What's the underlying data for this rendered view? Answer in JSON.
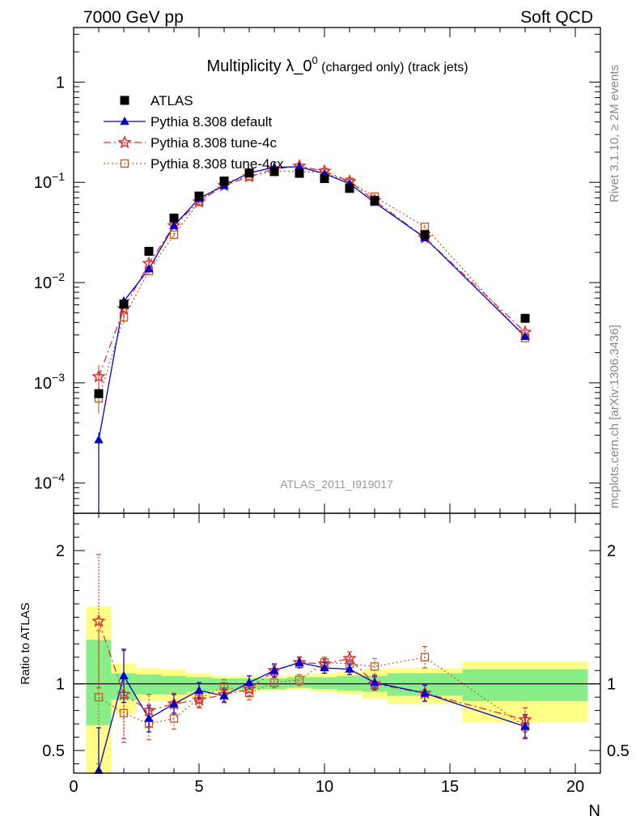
{
  "header": {
    "left": "7000 GeV pp",
    "right": "Soft QCD"
  },
  "side_text": {
    "rivet": "Rivet 3.1.10, ≥ 2M events",
    "mcplots": "mcplots.cern.ch [arXiv:1306.3436]"
  },
  "chart_data": {
    "type": "scatter",
    "title_main": "Multiplicity λ_0",
    "title_sup": "0",
    "title_suffix": " (charged only) (track jets)",
    "analysis_label": "ATLAS_2011_I919017",
    "xlabel": "N",
    "ylabel_ratio": "Ratio to ATLAS",
    "xlim": [
      0,
      21
    ],
    "ylim_main": [
      5e-05,
      3.5
    ],
    "ylim_ratio": [
      0.33,
      2.28
    ],
    "y_scale_main": "log",
    "x_ticks": [
      "0",
      "5",
      "10",
      "15",
      "20"
    ],
    "ratio_ticks": [
      "0.5",
      "1",
      "2"
    ],
    "legend_position": "top-left",
    "legend": [
      {
        "label": "ATLAS"
      },
      {
        "label": "Pythia 8.308 default"
      },
      {
        "label": "Pythia 8.308 tune-4c"
      },
      {
        "label": "Pythia 8.308 tune-4cx"
      }
    ],
    "colors": {
      "atlas": "#000000",
      "default": "#0000cc",
      "tune4c": "#dd3333",
      "tune4cx": "#c0622c",
      "band_outer": "#ffff88",
      "band_inner": "#88ee88"
    },
    "x": [
      1,
      2,
      3,
      4,
      5,
      6,
      7,
      8,
      9,
      10,
      11,
      12,
      14,
      18
    ],
    "bin_edges": [
      0.5,
      1.5,
      2.5,
      3.5,
      4.5,
      5.5,
      6.5,
      7.5,
      8.5,
      9.5,
      10.5,
      11.5,
      12.5,
      15.5,
      20.5
    ],
    "atlas": [
      0.00078,
      0.0061,
      0.0205,
      0.044,
      0.073,
      0.103,
      0.124,
      0.128,
      0.123,
      0.109,
      0.087,
      0.066,
      0.03,
      0.0044
    ],
    "default": [
      0.00027,
      0.0065,
      0.0137,
      0.037,
      0.069,
      0.093,
      0.124,
      0.141,
      0.143,
      0.122,
      0.097,
      0.063,
      0.028,
      0.0029
    ],
    "tune4c": [
      0.00115,
      0.0055,
      0.0155,
      0.037,
      0.064,
      0.093,
      0.114,
      0.136,
      0.145,
      0.129,
      0.102,
      0.066,
      0.028,
      0.0032
    ],
    "tune4cx": [
      0.0007,
      0.0045,
      0.013,
      0.03,
      0.064,
      0.099,
      0.115,
      0.13,
      0.128,
      0.126,
      0.101,
      0.072,
      0.036,
      0.0028
    ],
    "ratio_default": [
      0.35,
      1.06,
      0.74,
      0.85,
      0.95,
      0.91,
      1.01,
      1.1,
      1.16,
      1.12,
      1.11,
      1.01,
      0.93,
      0.68
    ],
    "ratio_tune4c": [
      1.47,
      0.92,
      0.8,
      0.85,
      0.88,
      0.92,
      0.96,
      1.1,
      1.16,
      1.15,
      1.19,
      1.0,
      0.93,
      0.73
    ],
    "ratio_tune4cx": [
      0.9,
      0.78,
      0.7,
      0.74,
      0.89,
      0.98,
      0.93,
      1.01,
      1.03,
      1.16,
      1.15,
      1.13,
      1.2,
      0.68
    ],
    "ratio_err_default": [
      0.32,
      0.2,
      0.1,
      0.07,
      0.06,
      0.05,
      0.05,
      0.05,
      0.04,
      0.04,
      0.04,
      0.05,
      0.06,
      0.09
    ],
    "ratio_err_tune4c": [
      0.5,
      0.33,
      0.12,
      0.08,
      0.06,
      0.05,
      0.05,
      0.04,
      0.04,
      0.04,
      0.05,
      0.05,
      0.06,
      0.09
    ],
    "ratio_err_tune4cx": [
      0.5,
      0.22,
      0.12,
      0.08,
      0.06,
      0.05,
      0.05,
      0.04,
      0.04,
      0.04,
      0.05,
      0.06,
      0.08,
      0.08
    ],
    "band_outer": [
      [
        0.33,
        1.58
      ],
      [
        0.78,
        1.15
      ],
      [
        0.87,
        1.12
      ],
      [
        0.87,
        1.11
      ],
      [
        0.9,
        1.08
      ],
      [
        0.93,
        1.06
      ],
      [
        0.94,
        1.06
      ],
      [
        0.95,
        1.06
      ],
      [
        0.96,
        1.07
      ],
      [
        0.94,
        1.08
      ],
      [
        0.92,
        1.09
      ],
      [
        0.89,
        1.11
      ],
      [
        0.85,
        1.12
      ],
      [
        0.71,
        1.17
      ]
    ],
    "band_inner": [
      [
        0.69,
        1.33
      ],
      [
        0.88,
        1.08
      ],
      [
        0.92,
        1.07
      ],
      [
        0.92,
        1.06
      ],
      [
        0.94,
        1.05
      ],
      [
        0.95,
        1.04
      ],
      [
        0.96,
        1.04
      ],
      [
        0.96,
        1.04
      ],
      [
        0.97,
        1.05
      ],
      [
        0.96,
        1.05
      ],
      [
        0.95,
        1.06
      ],
      [
        0.94,
        1.06
      ],
      [
        0.91,
        1.08
      ],
      [
        0.87,
        1.11
      ]
    ]
  }
}
